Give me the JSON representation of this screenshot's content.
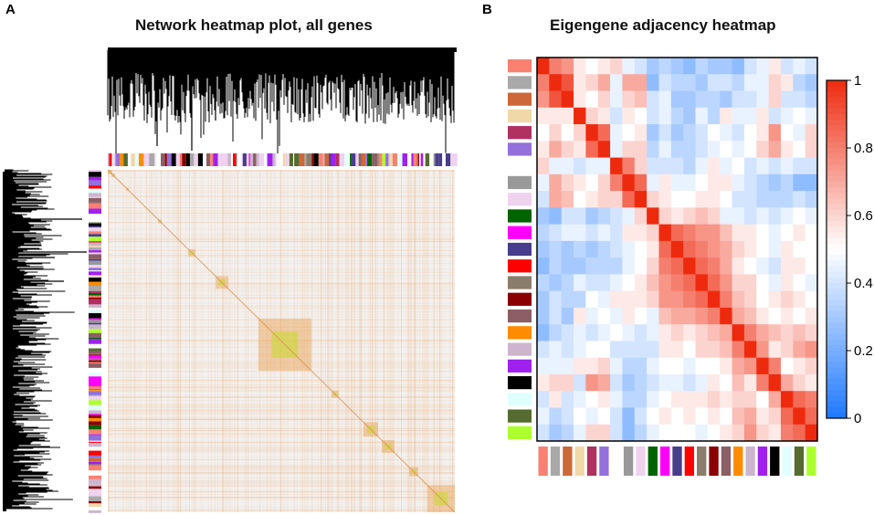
{
  "panel_a": {
    "letter": "A",
    "title": "Network heatmap plot, all genes"
  },
  "panel_b": {
    "letter": "B",
    "title": "Eigengene adjacency heatmap"
  },
  "chart_data": [
    {
      "type": "heatmap",
      "title": "Network heatmap plot, all genes",
      "panel": "A",
      "description_fields": {
        "dendrograms": [
          "top",
          "left"
        ],
        "module_color_bars": [
          "top",
          "left"
        ]
      },
      "palette": {
        "low": "#f2f2f2",
        "mid": "#f0a860",
        "high": "#c8d82a"
      }
    },
    {
      "type": "heatmap",
      "title": "Eigengene adjacency heatmap",
      "panel": "B",
      "modules": [
        "salmon",
        "darkgrey",
        "sienna3",
        "wheat",
        "maroon",
        "mediumpurple3",
        "white",
        "grey60",
        "thistle2",
        "darkgreen",
        "magenta",
        "darkslateblue",
        "red",
        "lightpink4",
        "darkred",
        "plum4",
        "darkorange",
        "thistle3",
        "purple",
        "black",
        "lightcyan",
        "darkolivegreen",
        "greenyellow"
      ],
      "module_colors": [
        "#fa8072",
        "#a9a9a9",
        "#cd6839",
        "#f0d8a8",
        "#b03060",
        "#9370db",
        "#ffffff",
        "#999999",
        "#eed2ee",
        "#006400",
        "#ff00ff",
        "#483d8b",
        "#ff0000",
        "#8b7d6b",
        "#8b0000",
        "#8b5f65",
        "#ff8c00",
        "#cdb5cd",
        "#a020f0",
        "#000000",
        "#e0ffff",
        "#556b2f",
        "#adff2f"
      ],
      "values": [
        [
          1.0,
          0.8,
          0.75,
          0.55,
          0.5,
          0.55,
          0.6,
          0.45,
          0.4,
          0.3,
          0.35,
          0.3,
          0.25,
          0.35,
          0.3,
          0.3,
          0.25,
          0.4,
          0.45,
          0.55,
          0.4,
          0.45,
          0.4
        ],
        [
          0.8,
          1.0,
          0.9,
          0.55,
          0.6,
          0.7,
          0.45,
          0.7,
          0.7,
          0.25,
          0.4,
          0.35,
          0.35,
          0.3,
          0.4,
          0.4,
          0.35,
          0.45,
          0.45,
          0.6,
          0.55,
          0.35,
          0.3
        ],
        [
          0.75,
          0.9,
          1.0,
          0.55,
          0.5,
          0.6,
          0.45,
          0.6,
          0.65,
          0.4,
          0.45,
          0.3,
          0.3,
          0.35,
          0.35,
          0.3,
          0.4,
          0.4,
          0.45,
          0.6,
          0.4,
          0.4,
          0.35
        ],
        [
          0.55,
          0.55,
          0.55,
          1.0,
          0.6,
          0.55,
          0.4,
          0.55,
          0.5,
          0.4,
          0.45,
          0.35,
          0.3,
          0.45,
          0.35,
          0.55,
          0.45,
          0.45,
          0.55,
          0.4,
          0.45,
          0.5,
          0.45
        ],
        [
          0.5,
          0.6,
          0.5,
          0.6,
          1.0,
          0.85,
          0.45,
          0.5,
          0.55,
          0.3,
          0.4,
          0.3,
          0.35,
          0.4,
          0.5,
          0.45,
          0.4,
          0.5,
          0.55,
          0.75,
          0.5,
          0.45,
          0.6
        ],
        [
          0.55,
          0.7,
          0.6,
          0.55,
          0.85,
          1.0,
          0.45,
          0.6,
          0.6,
          0.35,
          0.45,
          0.35,
          0.35,
          0.4,
          0.45,
          0.5,
          0.45,
          0.5,
          0.6,
          0.7,
          0.55,
          0.5,
          0.6
        ],
        [
          0.6,
          0.45,
          0.45,
          0.4,
          0.45,
          0.45,
          1.0,
          0.8,
          0.6,
          0.4,
          0.4,
          0.4,
          0.35,
          0.45,
          0.55,
          0.45,
          0.5,
          0.4,
          0.45,
          0.4,
          0.45,
          0.4,
          0.4
        ],
        [
          0.45,
          0.7,
          0.6,
          0.55,
          0.5,
          0.6,
          0.8,
          1.0,
          0.85,
          0.45,
          0.55,
          0.45,
          0.45,
          0.5,
          0.55,
          0.55,
          0.45,
          0.4,
          0.35,
          0.3,
          0.35,
          0.25,
          0.25
        ],
        [
          0.4,
          0.7,
          0.65,
          0.5,
          0.55,
          0.6,
          0.6,
          0.85,
          1.0,
          0.6,
          0.55,
          0.5,
          0.5,
          0.55,
          0.55,
          0.5,
          0.4,
          0.4,
          0.35,
          0.35,
          0.35,
          0.4,
          0.35
        ],
        [
          0.3,
          0.25,
          0.4,
          0.4,
          0.3,
          0.35,
          0.4,
          0.45,
          0.6,
          1.0,
          0.6,
          0.55,
          0.6,
          0.65,
          0.6,
          0.45,
          0.45,
          0.4,
          0.45,
          0.4,
          0.45,
          0.5,
          0.45
        ],
        [
          0.35,
          0.4,
          0.45,
          0.45,
          0.4,
          0.45,
          0.4,
          0.55,
          0.55,
          0.6,
          1.0,
          0.85,
          0.8,
          0.75,
          0.75,
          0.65,
          0.55,
          0.55,
          0.5,
          0.45,
          0.5,
          0.55,
          0.5
        ],
        [
          0.3,
          0.35,
          0.3,
          0.35,
          0.3,
          0.35,
          0.4,
          0.45,
          0.5,
          0.55,
          0.85,
          1.0,
          0.85,
          0.8,
          0.75,
          0.7,
          0.6,
          0.55,
          0.5,
          0.45,
          0.55,
          0.5,
          0.5
        ],
        [
          0.25,
          0.35,
          0.3,
          0.3,
          0.35,
          0.35,
          0.35,
          0.45,
          0.5,
          0.6,
          0.8,
          0.85,
          1.0,
          0.85,
          0.8,
          0.7,
          0.55,
          0.5,
          0.45,
          0.4,
          0.55,
          0.55,
          0.5
        ],
        [
          0.35,
          0.3,
          0.35,
          0.45,
          0.4,
          0.4,
          0.45,
          0.5,
          0.55,
          0.65,
          0.75,
          0.8,
          0.85,
          1.0,
          0.85,
          0.75,
          0.6,
          0.6,
          0.5,
          0.45,
          0.55,
          0.5,
          0.45
        ],
        [
          0.3,
          0.4,
          0.35,
          0.35,
          0.5,
          0.45,
          0.55,
          0.55,
          0.55,
          0.6,
          0.75,
          0.75,
          0.8,
          0.85,
          1.0,
          0.8,
          0.65,
          0.6,
          0.5,
          0.55,
          0.6,
          0.55,
          0.5
        ],
        [
          0.3,
          0.4,
          0.3,
          0.55,
          0.45,
          0.5,
          0.45,
          0.55,
          0.5,
          0.45,
          0.65,
          0.7,
          0.7,
          0.75,
          0.8,
          1.0,
          0.7,
          0.65,
          0.55,
          0.5,
          0.55,
          0.5,
          0.55
        ],
        [
          0.25,
          0.35,
          0.4,
          0.45,
          0.4,
          0.45,
          0.5,
          0.45,
          0.4,
          0.45,
          0.55,
          0.6,
          0.55,
          0.6,
          0.65,
          0.7,
          1.0,
          0.8,
          0.7,
          0.65,
          0.6,
          0.65,
          0.6
        ],
        [
          0.4,
          0.45,
          0.4,
          0.45,
          0.5,
          0.5,
          0.4,
          0.4,
          0.4,
          0.4,
          0.55,
          0.55,
          0.5,
          0.6,
          0.6,
          0.65,
          0.8,
          1.0,
          0.75,
          0.55,
          0.6,
          0.7,
          0.75
        ],
        [
          0.45,
          0.45,
          0.45,
          0.55,
          0.55,
          0.6,
          0.45,
          0.35,
          0.35,
          0.45,
          0.5,
          0.5,
          0.45,
          0.5,
          0.5,
          0.55,
          0.7,
          0.75,
          1.0,
          0.8,
          0.5,
          0.55,
          0.6
        ],
        [
          0.55,
          0.6,
          0.6,
          0.4,
          0.75,
          0.7,
          0.4,
          0.3,
          0.35,
          0.4,
          0.45,
          0.45,
          0.4,
          0.45,
          0.55,
          0.5,
          0.65,
          0.55,
          0.8,
          1.0,
          0.7,
          0.6,
          0.55
        ],
        [
          0.4,
          0.55,
          0.4,
          0.45,
          0.5,
          0.55,
          0.45,
          0.35,
          0.35,
          0.45,
          0.5,
          0.55,
          0.55,
          0.55,
          0.6,
          0.55,
          0.6,
          0.6,
          0.5,
          0.7,
          1.0,
          0.85,
          0.8
        ],
        [
          0.45,
          0.35,
          0.4,
          0.5,
          0.45,
          0.5,
          0.4,
          0.25,
          0.4,
          0.5,
          0.55,
          0.5,
          0.55,
          0.5,
          0.55,
          0.5,
          0.65,
          0.7,
          0.55,
          0.6,
          0.85,
          1.0,
          0.85
        ],
        [
          0.4,
          0.3,
          0.35,
          0.45,
          0.6,
          0.6,
          0.4,
          0.25,
          0.35,
          0.45,
          0.5,
          0.5,
          0.5,
          0.45,
          0.5,
          0.55,
          0.6,
          0.75,
          0.6,
          0.55,
          0.8,
          0.85,
          1.0
        ]
      ],
      "colorbar": {
        "range": [
          0,
          1
        ],
        "ticks": [
          0,
          0.2,
          0.4,
          0.6,
          0.8,
          1
        ],
        "tick_labels": [
          "0",
          "0.2",
          "0.4",
          "0.6",
          "0.8",
          "1"
        ],
        "colors": {
          "low": "#1e78ff",
          "mid": "#ffffff",
          "high": "#ee2a0e"
        }
      }
    }
  ]
}
